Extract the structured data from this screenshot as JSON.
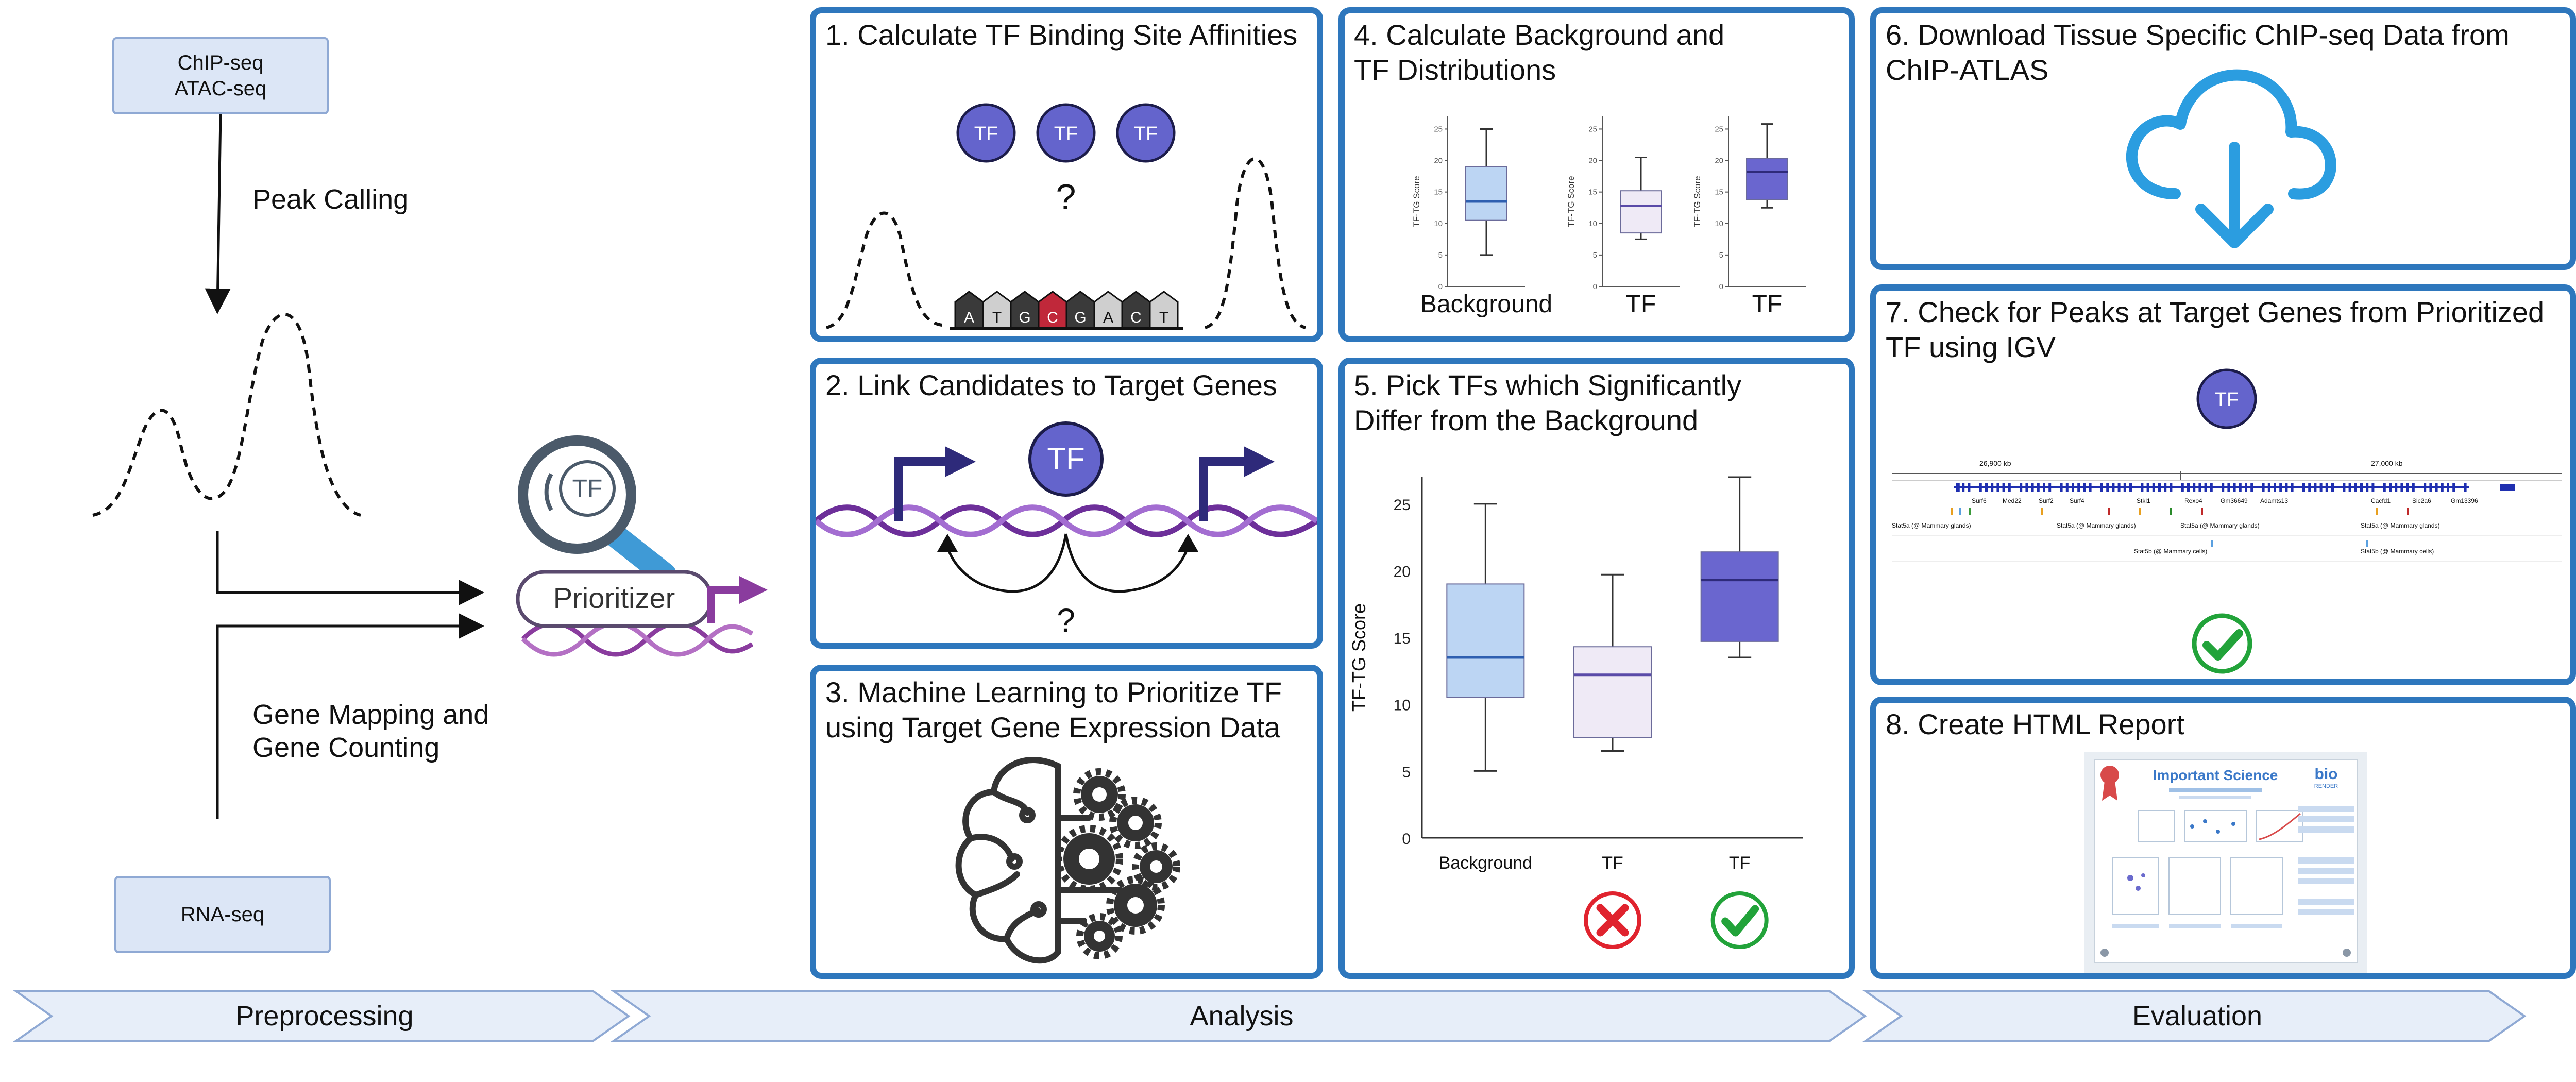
{
  "colors": {
    "panel_border": "#2e77bd",
    "tf_purple": "#6464cc",
    "light_blue": "#bcd5f3",
    "light_lavender": "#efeaf6",
    "dna_purple": "#7a3fa8",
    "arrow_navy": "#2e2a7a",
    "cloud_blue": "#2b9de0",
    "check_green": "#22a33a",
    "cross_red": "#e0232e",
    "chevron_fill": "#e7eef9"
  },
  "preprocessing": {
    "input_top": "ChIP-seq\nATAC-seq",
    "peak_calling": "Peak Calling",
    "gene_mapping": "Gene Mapping and\nGene Counting",
    "input_bottom": "RNA-seq",
    "prioritizer_label": "Prioritizer",
    "prioritizer_tf": "TF"
  },
  "panels": {
    "p1": {
      "title": "1. Calculate TF Binding Site Affinities",
      "tf": "TF",
      "question": "?",
      "bases": [
        "A",
        "T",
        "G",
        "C",
        "G",
        "A",
        "C",
        "T"
      ]
    },
    "p2": {
      "title": "2. Link Candidates to Target Genes",
      "tf": "TF",
      "question": "?"
    },
    "p3": {
      "title": "3. Machine Learning to Prioritize TF\nusing Target Gene Expression Data"
    },
    "p4": {
      "title": "4. Calculate Background and\nTF Distributions"
    },
    "p5": {
      "title": "5. Pick TFs which Significantly\nDiffer from the Background"
    },
    "p6": {
      "title": "6. Download Tissue Specific ChIP-seq Data from\nChIP-ATLAS"
    },
    "p7": {
      "title": "7. Check for Peaks at Target Genes from Prioritized\nTF using IGV",
      "tf": "TF",
      "igv": {
        "ticks": [
          "26,900 kb",
          "27,000 kb"
        ],
        "genes": [
          "Surf6",
          "Med22",
          "Surf2",
          "Surf4",
          "Stkl1",
          "Rexo4",
          "Gm36649",
          "Adamts13",
          "Cacfd1",
          "Slc2a6",
          "Gm13396"
        ],
        "tracks": [
          "Stat5a (@ Mammary glands)",
          "Stat5a (@ Mammary glands)",
          "Stat5a (@ Mammary glands)",
          "Stat5a (@ Mammary glands)",
          "Stat5b (@ Mammary cells)",
          "Stat5b (@ Mammary cells)"
        ]
      }
    },
    "p8": {
      "title": "8. Create HTML Report",
      "report_title": "Important Science",
      "report_logo_1": "bio",
      "report_logo_2": "RENDER"
    }
  },
  "chart_data": [
    {
      "type": "box",
      "ylabel": "TF-TG Score",
      "ylim": [
        0,
        27
      ],
      "yticks": [
        0,
        5,
        10,
        15,
        20,
        25
      ],
      "grid": false,
      "categories": [
        "Background",
        "TF",
        "TF"
      ],
      "series": [
        {
          "min": 5,
          "q1": 10.5,
          "median": 13.5,
          "q3": 19,
          "max": 25,
          "color": "#bcd5f3",
          "median_color": "#2e5fb0"
        },
        {
          "min": 6.5,
          "q1": 7.5,
          "median": 12.2,
          "q3": 14.3,
          "max": 19.7,
          "color": "#efeaf6",
          "median_color": "#5a4aa8"
        },
        {
          "min": 13.5,
          "q1": 14.7,
          "median": 19.3,
          "q3": 21.4,
          "max": 27,
          "color": "#6a66cf",
          "median_color": "#2e2a7a"
        }
      ],
      "verdict": [
        "",
        "cross",
        "check"
      ]
    },
    {
      "type": "box",
      "ylabel": "TF-TG Score",
      "ylim": [
        0,
        27
      ],
      "yticks": [
        0,
        5,
        10,
        15,
        20,
        25
      ],
      "grid": false,
      "categories": [
        "Background",
        "TF",
        "TF"
      ],
      "series": [
        {
          "min": 5,
          "q1": 10.5,
          "median": 13.5,
          "q3": 19,
          "max": 25,
          "color": "#bcd5f3",
          "median_color": "#2e5fb0"
        },
        {
          "min": 7.5,
          "q1": 8.5,
          "median": 12.8,
          "q3": 15.2,
          "max": 20.5,
          "color": "#efeaf6",
          "median_color": "#5a4aa8"
        },
        {
          "min": 12.5,
          "q1": 13.8,
          "median": 18.2,
          "q3": 20.3,
          "max": 25.8,
          "color": "#6a66cf",
          "median_color": "#2e2a7a"
        }
      ]
    }
  ],
  "footer": {
    "stages": [
      "Preprocessing",
      "Analysis",
      "Evaluation"
    ]
  }
}
